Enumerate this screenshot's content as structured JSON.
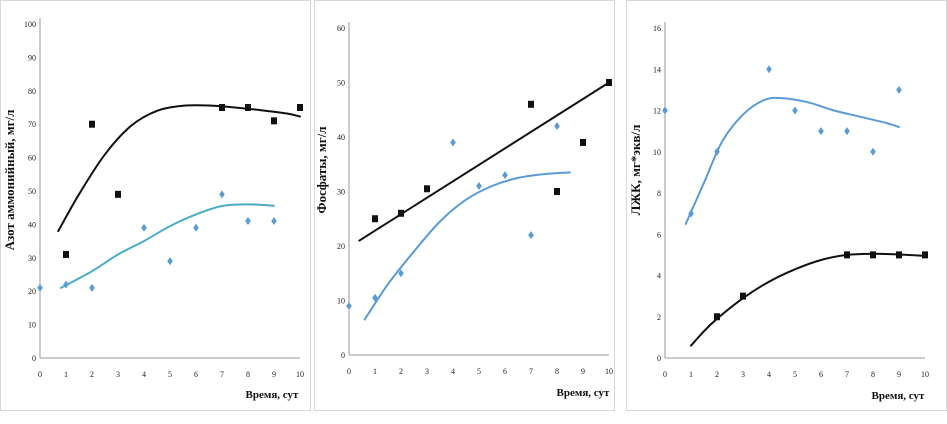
{
  "colors": {
    "black": "#111111",
    "blue": "#5b9bd5",
    "teal": "#4bacc6",
    "axis": "#9a9a9a"
  },
  "chart_data": [
    {
      "type": "scatter",
      "xlabel": "Время, сут",
      "ylabel": "Азот аммонийный, мг/л",
      "xlim": [
        0,
        10
      ],
      "ylim": [
        0,
        100
      ],
      "xticks": [
        0,
        1,
        2,
        3,
        4,
        5,
        6,
        7,
        8,
        9,
        10
      ],
      "yticks": [
        0,
        10,
        20,
        30,
        40,
        50,
        60,
        70,
        80,
        90,
        100
      ],
      "series": [
        {
          "color": "#111111",
          "marker": "square",
          "x": [
            1,
            2,
            3,
            7,
            8,
            9,
            10
          ],
          "y": [
            31,
            70,
            49,
            75,
            75,
            71,
            75
          ],
          "trend": {
            "x": [
              0.7,
              1.5,
              2.5,
              3.5,
              4.5,
              5.5,
              6.5,
              7.5,
              8.5,
              9.5,
              10
            ],
            "y": [
              38,
              49,
              61,
              69.5,
              74,
              75.5,
              75.6,
              75,
              74.2,
              73.2,
              72.3
            ]
          }
        },
        {
          "color": "#5b9bd5",
          "marker": "diamond",
          "x": [
            0,
            1,
            2,
            4,
            5,
            6,
            7,
            8,
            9
          ],
          "y": [
            21,
            22,
            21,
            39,
            29,
            39,
            49,
            41,
            41
          ],
          "trend": {
            "x": [
              0.8,
              2,
              3,
              4,
              5,
              6,
              7,
              8,
              9
            ],
            "y": [
              21,
              26,
              31,
              35,
              39.5,
              43,
              45.5,
              46,
              45.6
            ],
            "color": "#4bacc6"
          }
        }
      ]
    },
    {
      "type": "scatter",
      "xlabel": "Время, сут",
      "ylabel": "Фосфаты, мг/л",
      "xlim": [
        0,
        10
      ],
      "ylim": [
        0,
        60
      ],
      "xticks": [
        0,
        1,
        2,
        3,
        4,
        5,
        6,
        7,
        8,
        9,
        10
      ],
      "yticks": [
        0,
        10,
        20,
        30,
        40,
        50,
        60
      ],
      "series": [
        {
          "color": "#111111",
          "marker": "square",
          "x": [
            1,
            2,
            3,
            7,
            8,
            9,
            10
          ],
          "y": [
            25,
            26,
            30.5,
            46,
            30,
            39,
            50
          ],
          "trend": {
            "x": [
              0.4,
              10
            ],
            "y": [
              21,
              50
            ]
          }
        },
        {
          "color": "#5b9bd5",
          "marker": "diamond",
          "x": [
            0,
            1,
            2,
            4,
            5,
            6,
            7,
            8
          ],
          "y": [
            9,
            10.5,
            15,
            39,
            31,
            33,
            22,
            42
          ],
          "trend": {
            "x": [
              0.6,
              1.5,
              2.5,
              3.5,
              4.5,
              5.5,
              6.5,
              7.5,
              8.5
            ],
            "y": [
              6.5,
              13,
              19,
              24.5,
              28.5,
              31,
              32.5,
              33.2,
              33.5
            ],
            "color": "#5b9bd5"
          }
        }
      ]
    },
    {
      "type": "scatter",
      "xlabel": "Время, сут",
      "ylabel": "ЛЖК, мг*экв/л",
      "xlim": [
        0,
        10
      ],
      "ylim": [
        0,
        16
      ],
      "xticks": [
        0,
        1,
        2,
        3,
        4,
        5,
        6,
        7,
        8,
        9,
        10
      ],
      "yticks": [
        0,
        2,
        4,
        6,
        8,
        10,
        12,
        14,
        16
      ],
      "series": [
        {
          "color": "#5b9bd5",
          "marker": "diamond",
          "x": [
            0,
            1,
            2,
            4,
            5,
            6,
            7,
            8,
            9
          ],
          "y": [
            12,
            7,
            10,
            14,
            12,
            11,
            11,
            10,
            13
          ],
          "trend": {
            "x": [
              0.8,
              1.5,
              2.2,
              3,
              3.8,
              4.5,
              5.5,
              6.5,
              7.5,
              8.5,
              9
            ],
            "y": [
              6.5,
              8.5,
              10.5,
              11.8,
              12.5,
              12.6,
              12.4,
              12,
              11.7,
              11.4,
              11.2
            ],
            "color": "#5b9bd5"
          }
        },
        {
          "color": "#111111",
          "marker": "square",
          "x": [
            2,
            3,
            7,
            8,
            9,
            10
          ],
          "y": [
            2,
            3,
            5,
            5,
            5,
            5
          ],
          "trend": {
            "x": [
              1,
              1.5,
              2,
              3,
              4,
              5,
              6,
              7,
              8,
              9,
              10
            ],
            "y": [
              0.6,
              1.3,
              1.9,
              2.9,
              3.7,
              4.3,
              4.75,
              5,
              5.05,
              5.02,
              4.95
            ]
          }
        }
      ]
    }
  ]
}
